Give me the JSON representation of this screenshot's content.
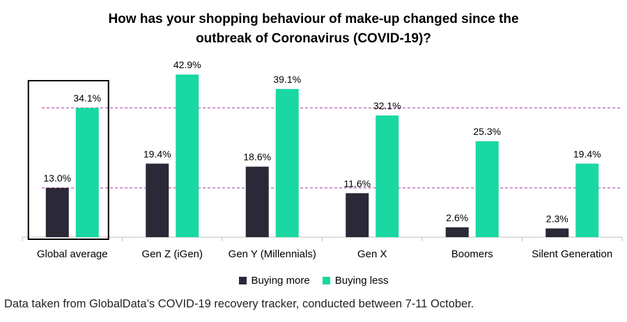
{
  "title_lines": [
    "How has your shopping behaviour of make-up changed since the",
    "outbreak of Coronavirus (COVID-19)?"
  ],
  "footnote": "Data taken from GlobalData’s COVID-19 recovery tracker, conducted between 7-11 October.",
  "colors": {
    "buying_more": "#2b2838",
    "buying_less": "#19d8a2",
    "reference_line": "#a3348e",
    "highlight_box": "#000000"
  },
  "chart_data": {
    "type": "bar",
    "title": "How has your shopping behaviour of make-up changed since the outbreak of Coronavirus (COVID-19)?",
    "categories": [
      "Global average",
      "Gen Z (iGen)",
      "Gen Y (Millennials)",
      "Gen X",
      "Boomers",
      "Silent Generation"
    ],
    "series": [
      {
        "name": "Buying more",
        "values": [
          13.0,
          19.4,
          18.6,
          11.6,
          2.6,
          2.3
        ],
        "labels": [
          "13.0%",
          "19.4%",
          "18.6%",
          "11.6%",
          "2.6%",
          "2.3%"
        ]
      },
      {
        "name": "Buying less",
        "values": [
          34.1,
          42.9,
          39.1,
          32.1,
          25.3,
          19.4
        ],
        "labels": [
          "34.1%",
          "42.9%",
          "39.1%",
          "32.1%",
          "25.3%",
          "19.4%"
        ]
      }
    ],
    "reference_lines": [
      34.1,
      13.0
    ],
    "highlighted_category": "Global average",
    "ylim": [
      0,
      45
    ],
    "grid": false,
    "legend_position": "bottom"
  }
}
